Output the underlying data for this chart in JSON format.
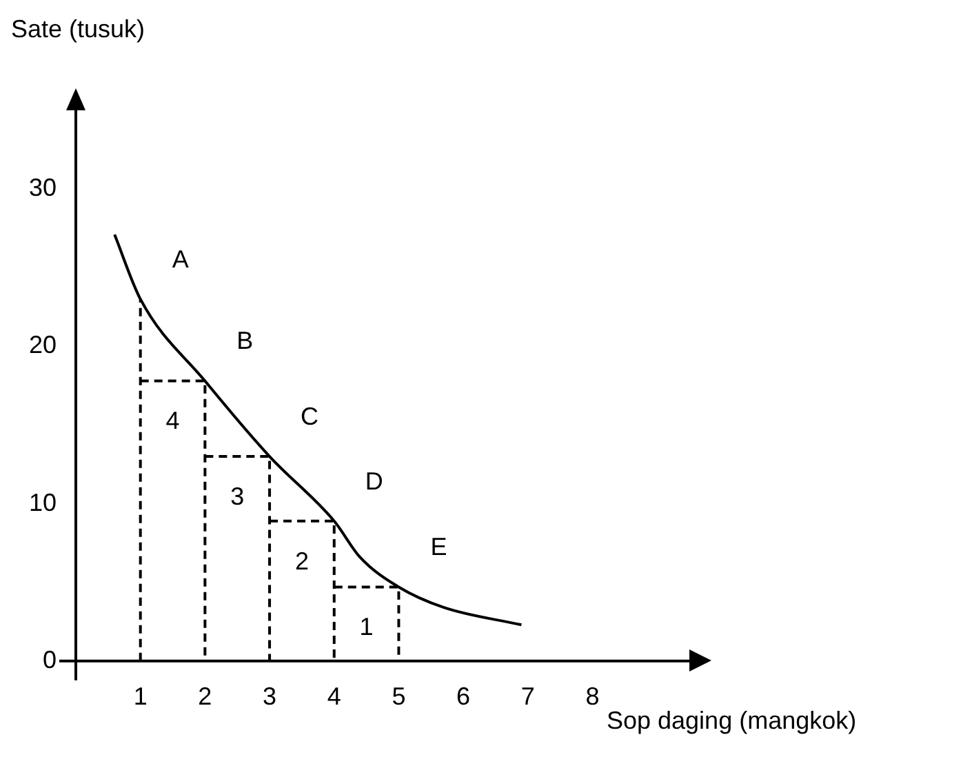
{
  "chart_data": {
    "type": "line",
    "xlabel": "Sop daging (mangkok)",
    "ylabel": "Sate (tusuk)",
    "xlim": [
      0,
      9.5
    ],
    "xticks": [
      1,
      2,
      3,
      4,
      5,
      6,
      7,
      8
    ],
    "ylim": [
      0,
      35
    ],
    "yticks": [
      0,
      10,
      20,
      30
    ],
    "grid": false,
    "legend": false,
    "marker": "none",
    "series": [
      {
        "color": "#000000",
        "line_style": "solid",
        "x": [
          0.6,
          1,
          2,
          3,
          4,
          4.4,
          5,
          5.7,
          6.9
        ],
        "values": [
          27.1,
          23,
          17.8,
          13,
          8.9,
          6.6,
          4.7,
          3.4,
          2.3
        ]
      },
      {
        "color": "#000000",
        "line_style": "dashed",
        "x": [
          1,
          1
        ],
        "values": [
          0,
          23
        ]
      },
      {
        "color": "#000000",
        "line_style": "dashed",
        "x": [
          1,
          2,
          2
        ],
        "values": [
          17.8,
          17.8,
          0
        ]
      },
      {
        "color": "#000000",
        "line_style": "dashed",
        "x": [
          2,
          3,
          3
        ],
        "values": [
          13,
          13,
          0
        ]
      },
      {
        "color": "#000000",
        "line_style": "dashed",
        "x": [
          3,
          4,
          4
        ],
        "values": [
          8.9,
          8.9,
          0
        ]
      },
      {
        "color": "#000000",
        "line_style": "dashed",
        "x": [
          4,
          5,
          5
        ],
        "values": [
          4.7,
          4.7,
          0
        ]
      }
    ],
    "annotations": [
      {
        "text": "A",
        "x": 1,
        "y": 23
      },
      {
        "text": "B",
        "x": 2,
        "y": 17.8
      },
      {
        "text": "C",
        "x": 3,
        "y": 13
      },
      {
        "text": "D",
        "x": 4,
        "y": 8.9
      },
      {
        "text": "E",
        "x": 5,
        "y": 4.7
      },
      {
        "text": "4",
        "x": 1.5,
        "y": 17.8
      },
      {
        "text": "3",
        "x": 2.5,
        "y": 13
      },
      {
        "text": "2",
        "x": 3.5,
        "y": 8.9
      },
      {
        "text": "1",
        "x": 4.5,
        "y": 4.7
      }
    ]
  }
}
